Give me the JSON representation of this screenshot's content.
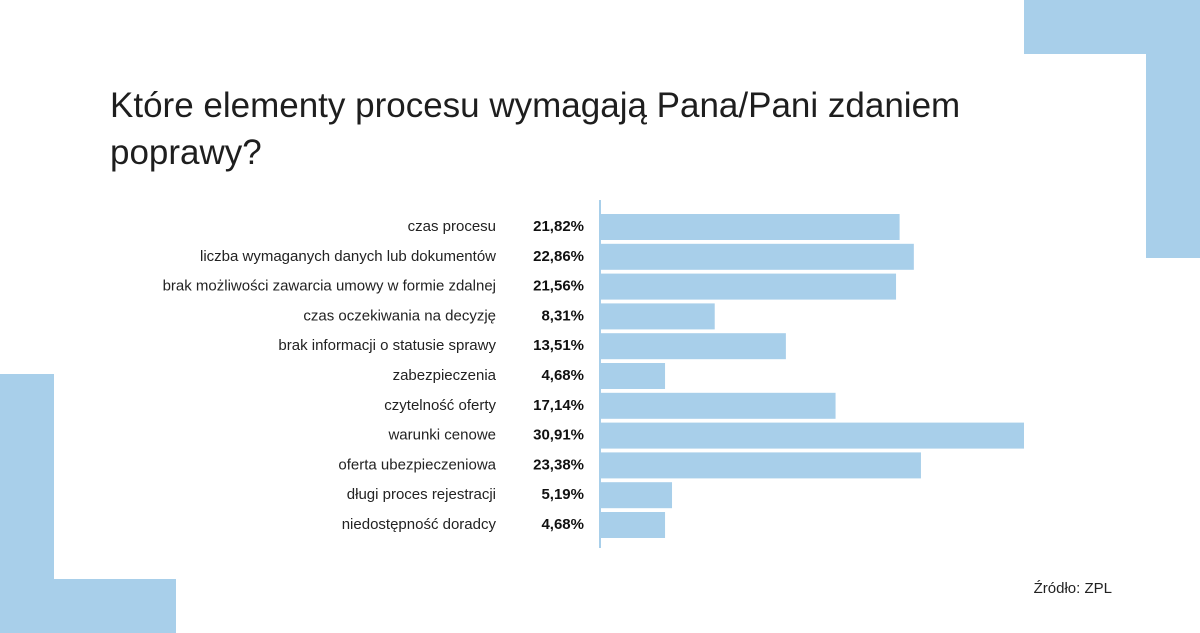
{
  "title": "Które elementy procesu wymagają Pana/Pani zdaniem poprawy?",
  "source": "Źródło: ZPL",
  "colors": {
    "bar": "#a8cfea",
    "decoration": "#a8cfea",
    "axis": "#a8cfea"
  },
  "chart_data": {
    "type": "bar",
    "orientation": "horizontal",
    "title": "Które elementy procesu wymagają Pana/Pani zdaniem poprawy?",
    "categories": [
      "czas procesu",
      "liczba wymaganych danych lub dokumentów",
      "brak możliwości zawarcia umowy w formie zdalnej",
      "czas oczekiwania na decyzję",
      "brak informacji o statusie sprawy",
      "zabezpieczenia",
      "czytelność oferty",
      "warunki cenowe",
      "oferta ubezpieczeniowa",
      "długi proces rejestracji",
      "niedostępność doradcy"
    ],
    "values": [
      21.82,
      22.86,
      21.56,
      8.31,
      13.51,
      4.68,
      17.14,
      30.91,
      23.38,
      5.19,
      4.68
    ],
    "value_labels": [
      "21,82%",
      "22,86%",
      "21,56%",
      "8,31%",
      "13,51%",
      "4,68%",
      "17,14%",
      "30,91%",
      "23,38%",
      "5,19%",
      "4,68%"
    ],
    "xlim": [
      0,
      30.91
    ],
    "grid": false,
    "legend": "none"
  }
}
